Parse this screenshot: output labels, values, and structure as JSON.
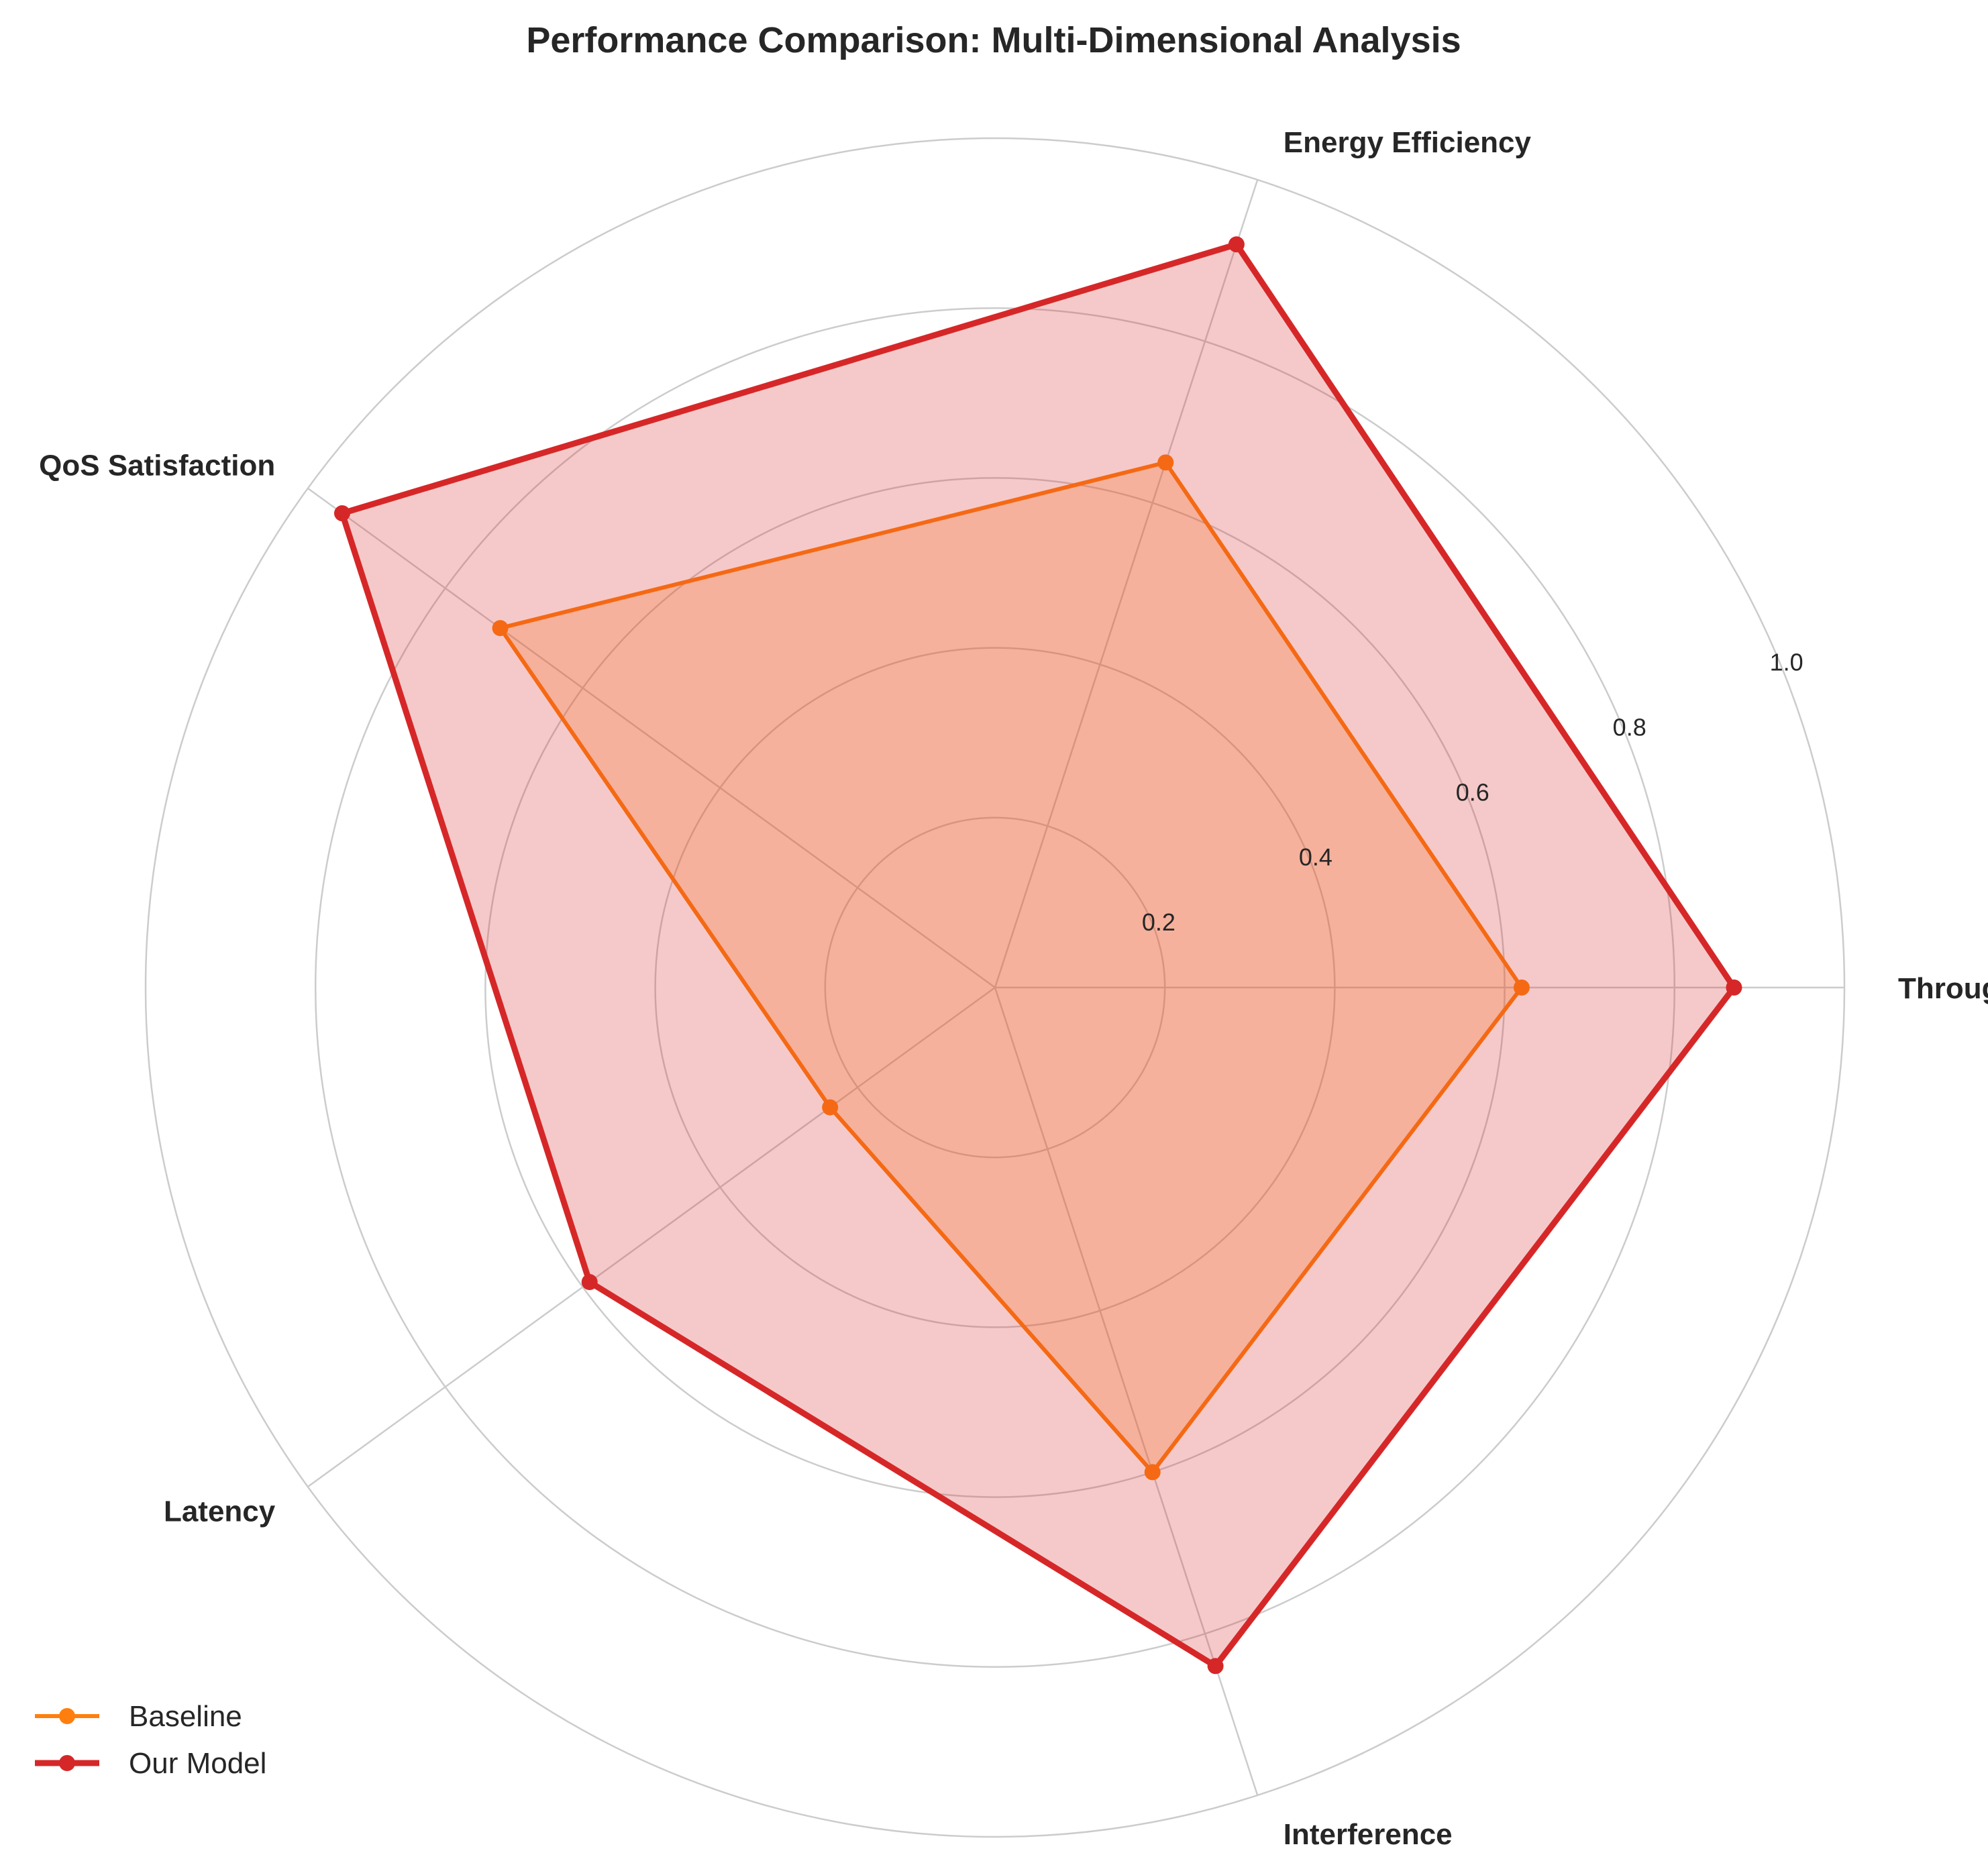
{
  "chart_data": {
    "type": "radar",
    "title": "Performance Comparison: Multi-Dimensional Analysis",
    "categories": [
      "Throughput",
      "Energy Efficiency",
      "QoS Satisfaction",
      "Latency",
      "Interference"
    ],
    "rlim": [
      0,
      1.0
    ],
    "rticks": [
      0.2,
      0.4,
      0.6,
      0.8,
      1.0
    ],
    "rtick_labels": [
      "0.2",
      "0.4",
      "0.6",
      "0.8",
      "1.0"
    ],
    "grid": true,
    "legend_position": "bottom-left",
    "series": [
      {
        "name": "Baseline",
        "values": [
          0.62,
          0.65,
          0.72,
          0.24,
          0.6
        ],
        "color": "#ff7f0e"
      },
      {
        "name": "Our Model",
        "values": [
          0.87,
          0.92,
          0.95,
          0.59,
          0.84
        ],
        "color": "#d62728"
      }
    ]
  }
}
